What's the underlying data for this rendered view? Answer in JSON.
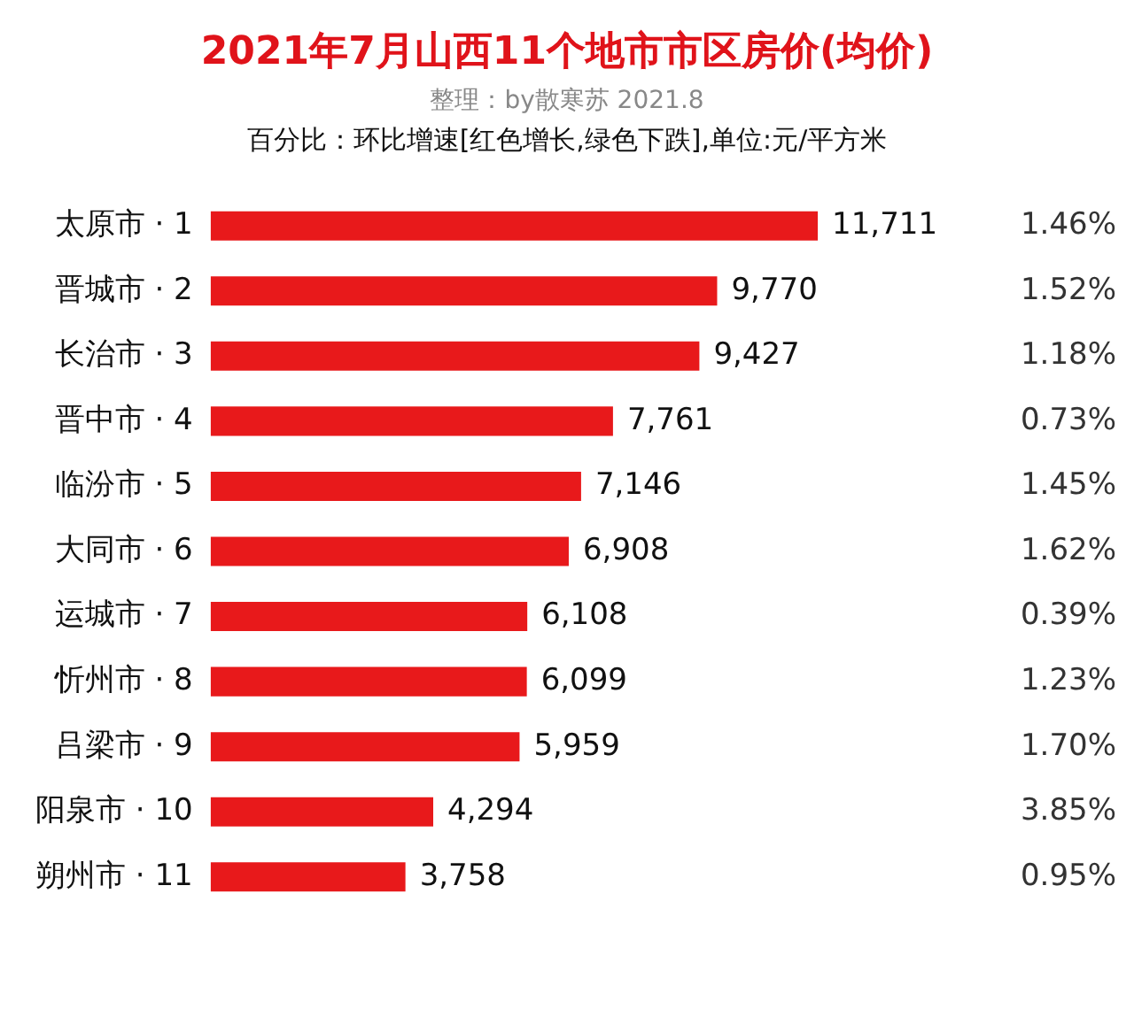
{
  "chart_data": {
    "type": "bar",
    "orientation": "horizontal",
    "title": "2021年7月山西11个地市市区房价(均价)",
    "subtitle": "整理：by散寒苏 2021.8",
    "categories": [
      "太原市 · 1",
      "晋城市 · 2",
      "长治市 · 3",
      "晋中市 · 4",
      "临汾市 · 5",
      "大同市 · 6",
      "运城市 · 7",
      "忻州市 · 8",
      "吕梁市 · 9",
      "阳泉市 · 10",
      "朔州市 · 11"
    ],
    "values": [
      11711,
      9770,
      9427,
      7761,
      7146,
      6908,
      6108,
      6099,
      5959,
      4294,
      3758
    ],
    "value_labels": [
      "11,711",
      "9,770",
      "9,427",
      "7,761",
      "7,146",
      "6,908",
      "6,108",
      "6,099",
      "5,959",
      "4,294",
      "3,758"
    ],
    "color": "#e8191b",
    "grid": false,
    "legend": false,
    "tick_labels": "y",
    "annotations": [
      "百分比：环比增速[红色增长,绿色下跌],单位:元/平方米",
      "1.46%",
      "1.52%",
      "1.18%",
      "0.73%",
      "1.45%",
      "1.62%",
      "0.39%",
      "1.23%",
      "1.70%",
      "3.85%",
      "0.95%"
    ]
  }
}
